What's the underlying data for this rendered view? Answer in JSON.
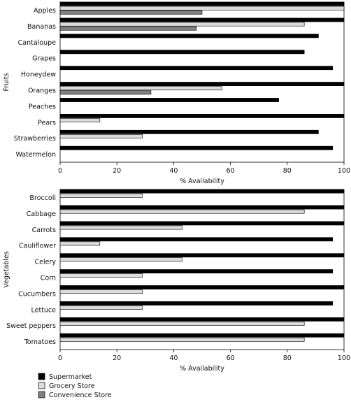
{
  "chart_data": [
    {
      "type": "bar",
      "orientation": "horizontal",
      "group_label": "Fruits",
      "xlabel": "% Availability",
      "xlim": [
        0,
        100
      ],
      "xticks": [
        0,
        20,
        40,
        60,
        80,
        100
      ],
      "categories": [
        "Apples",
        "Bananas",
        "Cantaloupe",
        "Grapes",
        "Honeydew",
        "Oranges",
        "Peaches",
        "Pears",
        "Strawberries",
        "Watermelon"
      ],
      "series": [
        {
          "name": "Supermarket",
          "color": "#000000",
          "values": [
            100,
            100,
            91,
            86,
            96,
            100,
            77,
            100,
            91,
            96
          ]
        },
        {
          "name": "Grocery Store",
          "color": "#dcdcdc",
          "values": [
            100,
            86,
            0,
            0,
            0,
            57,
            0,
            14,
            29,
            0
          ]
        },
        {
          "name": "Convenience Store",
          "color": "#808080",
          "values": [
            50,
            48,
            0,
            0,
            0,
            32,
            0,
            0,
            0,
            0
          ]
        }
      ]
    },
    {
      "type": "bar",
      "orientation": "horizontal",
      "group_label": "Vegetables",
      "xlabel": "% Availability",
      "xlim": [
        0,
        100
      ],
      "xticks": [
        0,
        20,
        40,
        60,
        80,
        100
      ],
      "categories": [
        "Broccoli",
        "Cabbage",
        "Carrots",
        "Cauliflower",
        "Celery",
        "Corn",
        "Cucumbers",
        "Lettuce",
        "Sweet peppers",
        "Tomatoes"
      ],
      "series": [
        {
          "name": "Supermarket",
          "color": "#000000",
          "values": [
            100,
            100,
            100,
            96,
            100,
            96,
            100,
            96,
            100,
            100
          ]
        },
        {
          "name": "Grocery Store",
          "color": "#dcdcdc",
          "values": [
            29,
            86,
            43,
            14,
            43,
            29,
            29,
            29,
            86,
            86
          ]
        },
        {
          "name": "Convenience Store",
          "color": "#808080",
          "values": [
            0,
            0,
            0,
            0,
            0,
            0,
            0,
            0,
            0,
            0
          ]
        }
      ]
    }
  ],
  "legend": {
    "placement": "bottom-left",
    "items": [
      {
        "label": "Supermarket",
        "color": "#000000"
      },
      {
        "label": "Grocery Store",
        "color": "#dcdcdc"
      },
      {
        "label": "Convenience Store",
        "color": "#808080"
      }
    ]
  }
}
